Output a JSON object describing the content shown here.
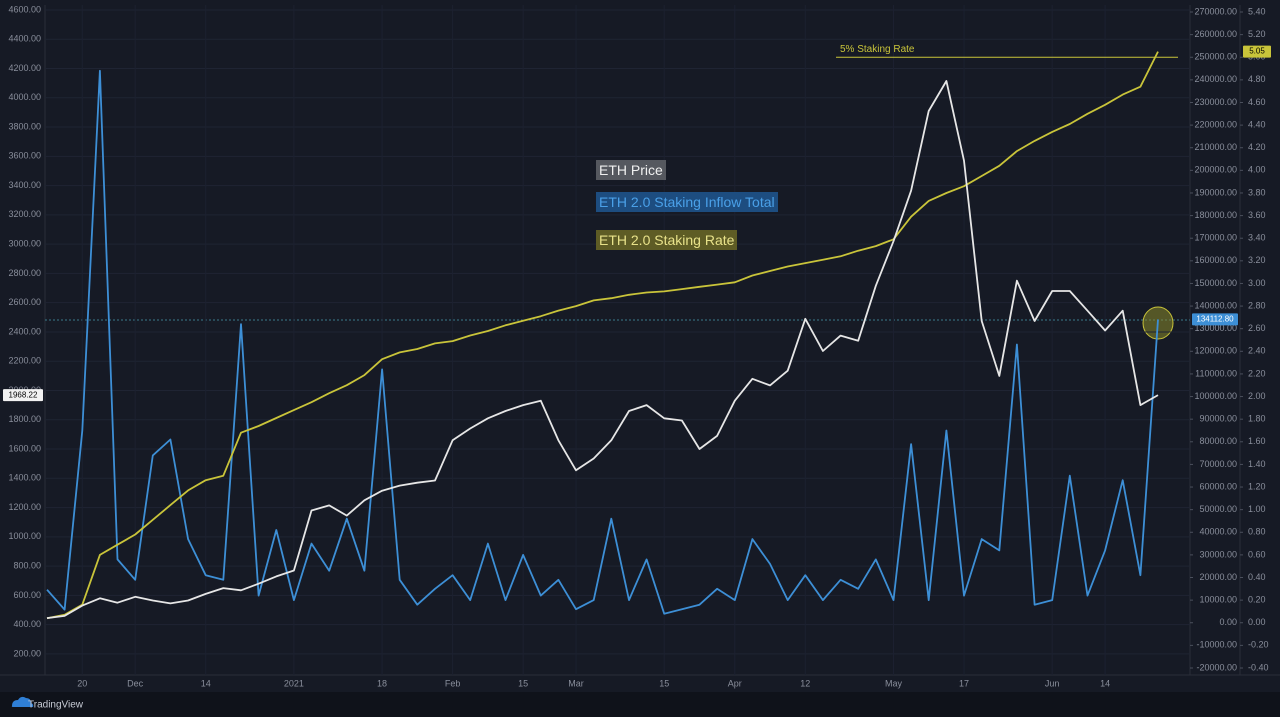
{
  "chart_data": {
    "type": "line",
    "categories": [
      null,
      null,
      "20",
      null,
      null,
      "Dec",
      null,
      null,
      null,
      "14",
      null,
      null,
      null,
      null,
      "2021",
      null,
      null,
      null,
      null,
      "18",
      null,
      null,
      null,
      "Feb",
      null,
      null,
      null,
      "15",
      null,
      null,
      "Mar",
      null,
      null,
      null,
      null,
      "15",
      null,
      null,
      null,
      "Apr",
      null,
      null,
      null,
      "12",
      null,
      null,
      null,
      null,
      "May",
      null,
      null,
      null,
      "17",
      null,
      null,
      null,
      null,
      "Jun",
      null,
      null,
      "14",
      null,
      null,
      null
    ],
    "series": [
      {
        "name": "ETH Price",
        "color": "#e6e6e6",
        "axis": "y",
        "values": [
          445,
          460,
          530,
          580,
          550,
          590,
          565,
          545,
          565,
          610,
          650,
          635,
          680,
          730,
          770,
          1180,
          1215,
          1145,
          1250,
          1315,
          1350,
          1370,
          1385,
          1660,
          1740,
          1810,
          1860,
          1900,
          1930,
          1660,
          1455,
          1535,
          1660,
          1860,
          1900,
          1810,
          1795,
          1600,
          1690,
          1930,
          2080,
          2035,
          2135,
          2490,
          2270,
          2375,
          2340,
          2715,
          3020,
          3365,
          3910,
          4115,
          3570,
          2475,
          2100,
          2750,
          2475,
          2680,
          2680,
          2545,
          2410,
          2545,
          1900,
          1968.22
        ],
        "value_labels": [
          null,
          null,
          null,
          null,
          null,
          null,
          null,
          null,
          null,
          null,
          null,
          null,
          null,
          null,
          null,
          null,
          null,
          null,
          null,
          null,
          null,
          null,
          null,
          null,
          null,
          null,
          null,
          null,
          null,
          null,
          null,
          null,
          null,
          null,
          null,
          null,
          null,
          null,
          null,
          null,
          null,
          null,
          null,
          null,
          null,
          null,
          null,
          null,
          null,
          null,
          null,
          null,
          null,
          null,
          null,
          null,
          null,
          null,
          null,
          null,
          null,
          null,
          null,
          "1968.22"
        ]
      },
      {
        "name": "ETH 2.0 Staking Inflow Total",
        "color": "#3d8fd6",
        "axis": "y2",
        "values": [
          14600,
          5800,
          85000,
          244000,
          28000,
          19000,
          74000,
          81000,
          37000,
          21000,
          19000,
          132000,
          12000,
          41000,
          10000,
          35000,
          23000,
          46000,
          23000,
          112000,
          19000,
          8000,
          15000,
          21000,
          10000,
          35000,
          10000,
          30000,
          12000,
          19000,
          6000,
          10000,
          46000,
          10000,
          28000,
          4000,
          6000,
          8000,
          15000,
          10000,
          37000,
          26000,
          10000,
          21000,
          10000,
          19000,
          15000,
          28000,
          10000,
          79000,
          10000,
          85000,
          12000,
          37000,
          32000,
          123000,
          8000,
          10000,
          65000,
          12000,
          32000,
          63000,
          21000,
          134112.8
        ],
        "value_labels": [
          null,
          null,
          null,
          null,
          null,
          null,
          null,
          null,
          null,
          null,
          null,
          null,
          null,
          null,
          null,
          null,
          null,
          null,
          null,
          null,
          null,
          null,
          null,
          null,
          null,
          null,
          null,
          null,
          null,
          null,
          null,
          null,
          null,
          null,
          null,
          null,
          null,
          null,
          null,
          null,
          null,
          null,
          null,
          null,
          null,
          null,
          null,
          null,
          null,
          null,
          null,
          null,
          null,
          null,
          null,
          null,
          null,
          null,
          null,
          null,
          null,
          null,
          null,
          "134112.80"
        ]
      },
      {
        "name": "ETH 2.0 Staking Rate",
        "color": "#c9c43a",
        "axis": "y3",
        "values": [
          0.04,
          0.07,
          0.16,
          0.6,
          0.69,
          0.78,
          0.91,
          1.04,
          1.17,
          1.26,
          1.3,
          1.68,
          1.74,
          1.81,
          1.88,
          1.95,
          2.03,
          2.1,
          2.19,
          2.33,
          2.39,
          2.42,
          2.47,
          2.49,
          2.54,
          2.58,
          2.63,
          2.67,
          2.71,
          2.76,
          2.8,
          2.85,
          2.87,
          2.9,
          2.92,
          2.93,
          2.95,
          2.97,
          2.99,
          3.01,
          3.07,
          3.11,
          3.15,
          3.18,
          3.21,
          3.24,
          3.29,
          3.33,
          3.39,
          3.59,
          3.73,
          3.8,
          3.86,
          3.95,
          4.04,
          4.17,
          4.26,
          4.34,
          4.41,
          4.5,
          4.58,
          4.67,
          4.74,
          5.05
        ],
        "value_labels": [
          null,
          null,
          null,
          null,
          null,
          null,
          null,
          null,
          null,
          null,
          null,
          null,
          null,
          null,
          null,
          null,
          null,
          null,
          null,
          null,
          null,
          null,
          null,
          null,
          null,
          null,
          null,
          null,
          null,
          null,
          null,
          null,
          null,
          null,
          null,
          null,
          null,
          null,
          null,
          null,
          null,
          null,
          null,
          null,
          null,
          null,
          null,
          null,
          null,
          null,
          null,
          null,
          null,
          null,
          null,
          null,
          null,
          null,
          null,
          null,
          null,
          null,
          null,
          "5.05"
        ]
      }
    ],
    "ylim": [
      56,
      4634
    ],
    "yticks": [
      {
        "value": 200,
        "label": "200.00"
      },
      {
        "value": 400,
        "label": "400.00"
      },
      {
        "value": 600,
        "label": "600.00"
      },
      {
        "value": 800,
        "label": "800.00"
      },
      {
        "value": 1000,
        "label": "1000.00"
      },
      {
        "value": 1200,
        "label": "1200.00"
      },
      {
        "value": 1400,
        "label": "1400.00"
      },
      {
        "value": 1600,
        "label": "1600.00"
      },
      {
        "value": 1800,
        "label": "1800.00"
      },
      {
        "value": 2000,
        "label": "2000.00"
      },
      {
        "value": 2200,
        "label": "2200.00"
      },
      {
        "value": 2400,
        "label": "2400.00"
      },
      {
        "value": 2600,
        "label": "2600.00"
      },
      {
        "value": 2800,
        "label": "2800.00"
      },
      {
        "value": 3000,
        "label": "3000.00"
      },
      {
        "value": 3200,
        "label": "3200.00"
      },
      {
        "value": 3400,
        "label": "3400.00"
      },
      {
        "value": 3600,
        "label": "3600.00"
      },
      {
        "value": 3800,
        "label": "3800.00"
      },
      {
        "value": 4000,
        "label": "4000.00"
      },
      {
        "value": 4200,
        "label": "4200.00"
      },
      {
        "value": 4400,
        "label": "4400.00"
      },
      {
        "value": 4600,
        "label": "4600.00"
      }
    ],
    "y2lim": [
      -23100,
      273100
    ],
    "y2ticks": [
      {
        "value": -20000,
        "label": "-20000.00"
      },
      {
        "value": -10000,
        "label": "-10000.00"
      },
      {
        "value": 0,
        "label": "0.00"
      },
      {
        "value": 10000,
        "label": "10000.00"
      },
      {
        "value": 20000,
        "label": "20000.00"
      },
      {
        "value": 30000,
        "label": "30000.00"
      },
      {
        "value": 40000,
        "label": "40000.00"
      },
      {
        "value": 50000,
        "label": "50000.00"
      },
      {
        "value": 60000,
        "label": "60000.00"
      },
      {
        "value": 70000,
        "label": "70000.00"
      },
      {
        "value": 80000,
        "label": "80000.00"
      },
      {
        "value": 90000,
        "label": "90000.00"
      },
      {
        "value": 100000,
        "label": "100000.00"
      },
      {
        "value": 110000,
        "label": "110000.00"
      },
      {
        "value": 120000,
        "label": "120000.00"
      },
      {
        "value": 130000,
        "label": "130000.00"
      },
      {
        "value": 140000,
        "label": "140000.00"
      },
      {
        "value": 150000,
        "label": "150000.00"
      },
      {
        "value": 160000,
        "label": "160000.00"
      },
      {
        "value": 170000,
        "label": "170000.00"
      },
      {
        "value": 180000,
        "label": "180000.00"
      },
      {
        "value": 190000,
        "label": "190000.00"
      },
      {
        "value": 200000,
        "label": "200000.00"
      },
      {
        "value": 210000,
        "label": "210000.00"
      },
      {
        "value": 220000,
        "label": "220000.00"
      },
      {
        "value": 230000,
        "label": "230000.00"
      },
      {
        "value": 240000,
        "label": "240000.00"
      },
      {
        "value": 250000,
        "label": "250000.00"
      },
      {
        "value": 260000,
        "label": "260000.00"
      },
      {
        "value": 270000,
        "label": "270000.00"
      }
    ],
    "y3lim": [
      -0.462,
      5.462
    ],
    "y3ticks": [
      {
        "value": -0.4,
        "label": "-0.40"
      },
      {
        "value": -0.2,
        "label": "-0.20"
      },
      {
        "value": 0,
        "label": "0.00"
      },
      {
        "value": 0.2,
        "label": "0.20"
      },
      {
        "value": 0.4,
        "label": "0.40"
      },
      {
        "value": 0.6,
        "label": "0.60"
      },
      {
        "value": 0.8,
        "label": "0.80"
      },
      {
        "value": 1,
        "label": "1.00"
      },
      {
        "value": 1.2,
        "label": "1.20"
      },
      {
        "value": 1.4,
        "label": "1.40"
      },
      {
        "value": 1.6,
        "label": "1.60"
      },
      {
        "value": 1.8,
        "label": "1.80"
      },
      {
        "value": 2,
        "label": "2.00"
      },
      {
        "value": 2.2,
        "label": "2.20"
      },
      {
        "value": 2.4,
        "label": "2.40"
      },
      {
        "value": 2.6,
        "label": "2.60"
      },
      {
        "value": 2.8,
        "label": "2.80"
      },
      {
        "value": 3,
        "label": "3.00"
      },
      {
        "value": 3.2,
        "label": "3.20"
      },
      {
        "value": 3.4,
        "label": "3.40"
      },
      {
        "value": 3.6,
        "label": "3.60"
      },
      {
        "value": 3.8,
        "label": "3.80"
      },
      {
        "value": 4,
        "label": "4.00"
      },
      {
        "value": 4.2,
        "label": "4.20"
      },
      {
        "value": 4.4,
        "label": "4.40"
      },
      {
        "value": 4.6,
        "label": "4.60"
      },
      {
        "value": 4.8,
        "label": "4.80"
      },
      {
        "value": 5,
        "label": "5.00"
      },
      {
        "value": 5.2,
        "label": "5.20"
      },
      {
        "value": 5.4,
        "label": "5.40"
      }
    ],
    "annotation": {
      "label": "5% Staking Rate",
      "value": 5,
      "axis": "y3"
    },
    "grid": true
  },
  "footer": {
    "brand": "TradingView"
  }
}
